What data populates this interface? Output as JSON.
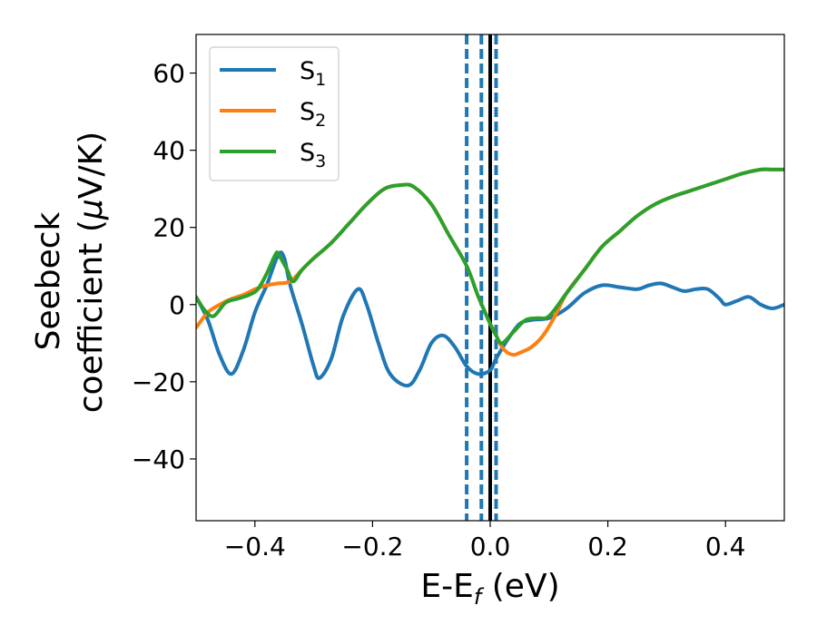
{
  "chart_data": {
    "type": "line",
    "xlabel": {
      "base": "E-E",
      "sub": "f",
      "tail": " (eV)"
    },
    "ylabel": {
      "line1": "Seebeck",
      "line2_pre": "coefficient  (",
      "mu": "μ",
      "line2_post": "V/K)"
    },
    "xlim": [
      -0.5,
      0.5
    ],
    "ylim": [
      -56,
      70
    ],
    "xticks": [
      -0.4,
      -0.2,
      0.0,
      0.2,
      0.4
    ],
    "xtick_labels": [
      "−0.4",
      "−0.2",
      "0.0",
      "0.2",
      "0.4"
    ],
    "yticks": [
      -40,
      -20,
      0,
      20,
      40,
      60
    ],
    "ytick_labels": [
      "−40",
      "−20",
      "0",
      "20",
      "40",
      "60"
    ],
    "grid": false,
    "legend_position": "top-left",
    "vlines": [
      {
        "x": -0.04,
        "style": "dashed",
        "color": "#1f77b4"
      },
      {
        "x": -0.015,
        "style": "dashed",
        "color": "#1f77b4"
      },
      {
        "x": 0.01,
        "style": "dashed",
        "color": "#1f77b4"
      },
      {
        "x": 0.0,
        "style": "solid",
        "color": "#000000"
      }
    ],
    "series": [
      {
        "name": "S",
        "sub": "1",
        "color": "#1f77b4",
        "points": [
          [
            -0.5,
            2
          ],
          [
            -0.48,
            -4
          ],
          [
            -0.46,
            -13
          ],
          [
            -0.44,
            -18
          ],
          [
            -0.42,
            -12
          ],
          [
            -0.4,
            -2
          ],
          [
            -0.38,
            5
          ],
          [
            -0.36,
            13
          ],
          [
            -0.35,
            12
          ],
          [
            -0.34,
            5
          ],
          [
            -0.32,
            -5
          ],
          [
            -0.3,
            -16
          ],
          [
            -0.29,
            -19
          ],
          [
            -0.27,
            -14
          ],
          [
            -0.25,
            -3
          ],
          [
            -0.225,
            4
          ],
          [
            -0.21,
            0
          ],
          [
            -0.19,
            -10
          ],
          [
            -0.17,
            -18
          ],
          [
            -0.14,
            -21
          ],
          [
            -0.12,
            -17
          ],
          [
            -0.1,
            -10
          ],
          [
            -0.08,
            -8
          ],
          [
            -0.06,
            -11
          ],
          [
            -0.04,
            -16
          ],
          [
            -0.02,
            -18
          ],
          [
            0.0,
            -17
          ],
          [
            0.01,
            -14
          ],
          [
            0.03,
            -9
          ],
          [
            0.05,
            -5
          ],
          [
            0.07,
            -4
          ],
          [
            0.1,
            -3.5
          ],
          [
            0.13,
            -1
          ],
          [
            0.16,
            3
          ],
          [
            0.19,
            5
          ],
          [
            0.22,
            4.5
          ],
          [
            0.25,
            4
          ],
          [
            0.27,
            5
          ],
          [
            0.29,
            5.5
          ],
          [
            0.31,
            4.5
          ],
          [
            0.33,
            3.5
          ],
          [
            0.35,
            4
          ],
          [
            0.37,
            4
          ],
          [
            0.39,
            1.5
          ],
          [
            0.4,
            0
          ],
          [
            0.42,
            1
          ],
          [
            0.44,
            2
          ],
          [
            0.46,
            0
          ],
          [
            0.48,
            -1
          ],
          [
            0.5,
            0
          ]
        ]
      },
      {
        "name": "S",
        "sub": "2",
        "color": "#ff7f0e",
        "points": [
          [
            -0.5,
            -6
          ],
          [
            -0.48,
            -2
          ],
          [
            -0.46,
            0
          ],
          [
            -0.44,
            1.5
          ],
          [
            -0.42,
            2.5
          ],
          [
            -0.4,
            4
          ],
          [
            -0.38,
            5
          ],
          [
            -0.36,
            5.5
          ],
          [
            -0.34,
            6
          ],
          [
            -0.32,
            9
          ],
          [
            -0.3,
            12
          ],
          [
            -0.27,
            16
          ],
          [
            -0.24,
            21
          ],
          [
            -0.21,
            26
          ],
          [
            -0.18,
            30
          ],
          [
            -0.15,
            31
          ],
          [
            -0.13,
            30.5
          ],
          [
            -0.1,
            26
          ],
          [
            -0.07,
            18
          ],
          [
            -0.04,
            10
          ],
          [
            -0.02,
            2
          ],
          [
            0.0,
            -5
          ],
          [
            0.01,
            -8
          ],
          [
            0.02,
            -11
          ],
          [
            0.03,
            -12.5
          ],
          [
            0.04,
            -13
          ],
          [
            0.05,
            -12.5
          ],
          [
            0.07,
            -11
          ],
          [
            0.09,
            -8
          ],
          [
            0.11,
            -3
          ],
          [
            0.13,
            3
          ],
          [
            0.16,
            9
          ],
          [
            0.19,
            15
          ],
          [
            0.22,
            19
          ],
          [
            0.25,
            23
          ],
          [
            0.28,
            26
          ],
          [
            0.31,
            28
          ],
          [
            0.34,
            29.5
          ],
          [
            0.37,
            31
          ],
          [
            0.4,
            32.5
          ],
          [
            0.43,
            34
          ],
          [
            0.46,
            35
          ],
          [
            0.48,
            35
          ],
          [
            0.5,
            35
          ]
        ]
      },
      {
        "name": "S",
        "sub": "3",
        "color": "#2ca02c",
        "points": [
          [
            -0.5,
            2
          ],
          [
            -0.485,
            -1.5
          ],
          [
            -0.47,
            -3
          ],
          [
            -0.45,
            0.5
          ],
          [
            -0.43,
            1.5
          ],
          [
            -0.41,
            2.5
          ],
          [
            -0.395,
            4
          ],
          [
            -0.38,
            8
          ],
          [
            -0.365,
            13
          ],
          [
            -0.36,
            13
          ],
          [
            -0.345,
            9
          ],
          [
            -0.335,
            6
          ],
          [
            -0.32,
            9
          ],
          [
            -0.3,
            12
          ],
          [
            -0.27,
            16
          ],
          [
            -0.24,
            21
          ],
          [
            -0.21,
            26
          ],
          [
            -0.18,
            30
          ],
          [
            -0.15,
            31
          ],
          [
            -0.13,
            30.5
          ],
          [
            -0.1,
            26
          ],
          [
            -0.07,
            18
          ],
          [
            -0.04,
            10
          ],
          [
            -0.02,
            2
          ],
          [
            0.0,
            -5
          ],
          [
            0.01,
            -8
          ],
          [
            0.02,
            -10
          ],
          [
            0.04,
            -7
          ],
          [
            0.06,
            -4
          ],
          [
            0.08,
            -3.5
          ],
          [
            0.1,
            -3
          ],
          [
            0.13,
            3
          ],
          [
            0.16,
            9
          ],
          [
            0.19,
            15
          ],
          [
            0.22,
            19
          ],
          [
            0.25,
            23
          ],
          [
            0.28,
            26
          ],
          [
            0.31,
            28
          ],
          [
            0.34,
            29.5
          ],
          [
            0.37,
            31
          ],
          [
            0.4,
            32.5
          ],
          [
            0.43,
            34
          ],
          [
            0.46,
            35
          ],
          [
            0.48,
            35
          ],
          [
            0.5,
            35
          ]
        ]
      }
    ]
  }
}
